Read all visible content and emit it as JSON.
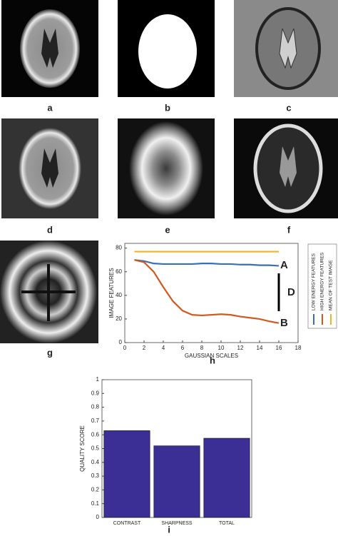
{
  "panel_labels": [
    "a",
    "b",
    "c",
    "d",
    "e",
    "f",
    "g"
  ],
  "chart_data": [
    {
      "type": "line",
      "panel_label": "h",
      "x_label": "GAUSSIAN SCALES",
      "y_label": "IMAGE FEATURES",
      "x": [
        1,
        2,
        3,
        4,
        5,
        6,
        7,
        8,
        9,
        10,
        11,
        12,
        13,
        14,
        15,
        16
      ],
      "series": [
        {
          "name": "LOW ENERGY FEATURES",
          "color": "#3a6fb5",
          "values": [
            70,
            69,
            67,
            66.5,
            66.5,
            66.5,
            66.5,
            67,
            67,
            66.5,
            66.5,
            66,
            66,
            65.5,
            65.5,
            65
          ]
        },
        {
          "name": "HIGH ENERGY FEATURES",
          "color": "#d2581f",
          "values": [
            70,
            68,
            60,
            47,
            35,
            27,
            23.5,
            23,
            23.5,
            24,
            23.5,
            22,
            21,
            20,
            18,
            16.5
          ]
        },
        {
          "name": "MEAN OF TEST IMAGE",
          "color": "#f0b323",
          "values": [
            77,
            77,
            77,
            77,
            77,
            77,
            77,
            77,
            77,
            77,
            77,
            77,
            77,
            77,
            77,
            77
          ]
        }
      ],
      "annotations": [
        "A",
        "D",
        "B"
      ],
      "xlim": [
        0,
        18
      ],
      "xticks": [
        0,
        2,
        4,
        6,
        8,
        10,
        12,
        14,
        16,
        18
      ],
      "ylim": [
        0,
        84
      ],
      "yticks": [
        0,
        20,
        40,
        60,
        80
      ]
    },
    {
      "type": "bar",
      "panel_label": "i",
      "y_label": "QUALITY SCORE",
      "categories": [
        "CONTRAST",
        "SHARPNESS",
        "TOTAL"
      ],
      "values": [
        0.63,
        0.52,
        0.575
      ],
      "color": "#3b2f96",
      "ylim": [
        0,
        1
      ],
      "yticks": [
        0,
        0.1,
        0.2,
        0.3,
        0.4,
        0.5,
        0.6,
        0.7,
        0.8,
        0.9,
        1
      ]
    }
  ]
}
